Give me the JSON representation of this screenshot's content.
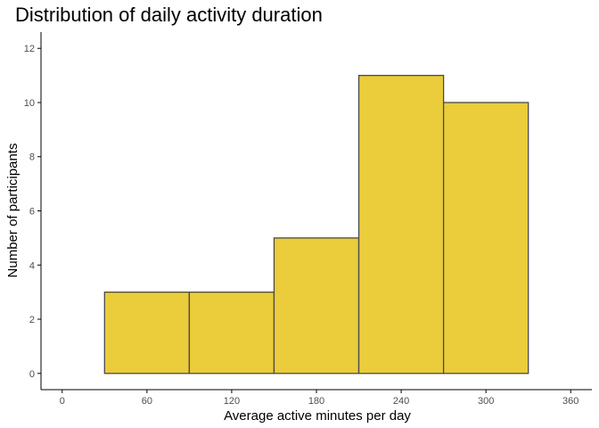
{
  "chart_data": {
    "type": "bar",
    "title": "Distribution of daily activity duration",
    "xlabel": "Average active minutes per day",
    "ylabel": "Number of participants",
    "bins": [
      {
        "start": 30,
        "end": 90,
        "count": 3
      },
      {
        "start": 90,
        "end": 150,
        "count": 3
      },
      {
        "start": 150,
        "end": 210,
        "count": 5
      },
      {
        "start": 210,
        "end": 270,
        "count": 11
      },
      {
        "start": 270,
        "end": 330,
        "count": 10
      }
    ],
    "xlim": [
      -15,
      375
    ],
    "ylim": [
      -0.6,
      12.6
    ],
    "x_ticks": [
      0,
      60,
      120,
      180,
      240,
      300,
      360
    ],
    "y_ticks": [
      0,
      2,
      4,
      6,
      8,
      10,
      12
    ],
    "grid": false,
    "colors": {
      "bar_fill": "#EBCC3A",
      "bar_stroke": "#4a4a4a"
    }
  }
}
